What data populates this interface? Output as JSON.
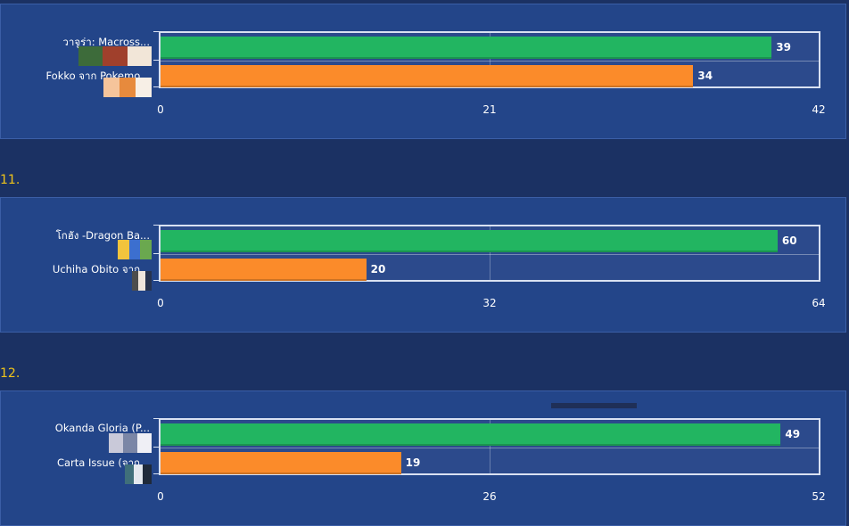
{
  "chart_data": [
    {
      "type": "bar",
      "section_number": "",
      "categories": [
        "วาจูร่า: Macross...",
        "Fokko จาก Pokemo..."
      ],
      "series": [
        {
          "values": [
            39,
            34
          ]
        }
      ],
      "bar_colors": [
        "#22b561",
        "#fb8b2a"
      ],
      "xlim": [
        0,
        42
      ],
      "xticks": [
        "0",
        "21",
        "42"
      ],
      "grid": true
    },
    {
      "type": "bar",
      "section_number": "11.",
      "categories": [
        "โกฮัง -Dragon Ba...",
        "Uchiha Obito จาก..."
      ],
      "series": [
        {
          "values": [
            60,
            20
          ]
        }
      ],
      "bar_colors": [
        "#22b561",
        "#fb8b2a"
      ],
      "xlim": [
        0,
        64
      ],
      "xticks": [
        "0",
        "32",
        "64"
      ],
      "grid": true
    },
    {
      "type": "bar",
      "section_number": "12.",
      "categories": [
        "Okanda Gloria (P...",
        "Carta Issue (จาก..."
      ],
      "series": [
        {
          "values": [
            49,
            19
          ]
        }
      ],
      "bar_colors": [
        "#22b561",
        "#fb8b2a"
      ],
      "xlim": [
        0,
        52
      ],
      "xticks": [
        "0",
        "26",
        "52"
      ],
      "grid": true
    }
  ],
  "colors": {
    "background": "#1b3163",
    "panel": "#234589",
    "plot_area": "#2c4a8c",
    "section_number": "#f0c419"
  }
}
